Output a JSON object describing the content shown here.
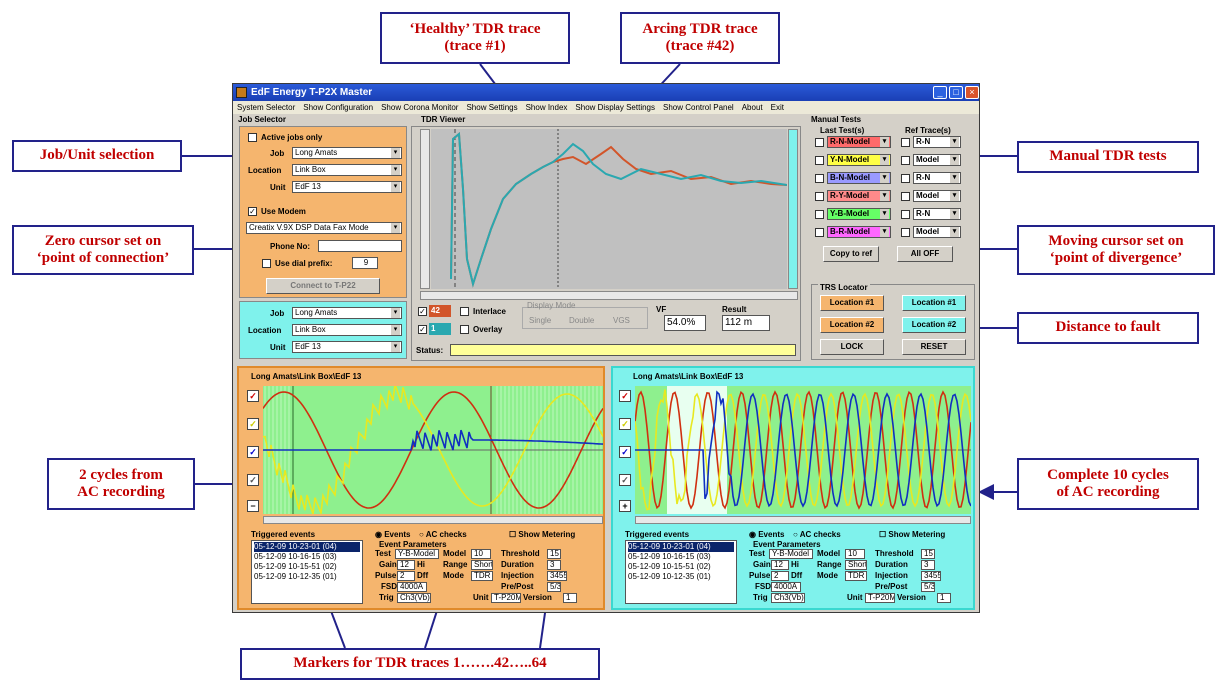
{
  "callouts": {
    "healthy": "‘Healthy’ TDR trace\n(trace #1)",
    "arcing": "Arcing TDR trace\n(trace #42)",
    "job_unit": "Job/Unit selection",
    "manual": "Manual TDR tests",
    "zero": "Zero cursor set on\n‘point of connection’",
    "moving": "Moving cursor set on\n‘point of divergence’",
    "distance": "Distance to fault",
    "two_cycles": "2 cycles from\nAC recording",
    "ten_cycles": "Complete 10 cycles\nof AC recording",
    "markers": "Markers for TDR traces 1…….42…..64"
  },
  "window": {
    "title": "EdF Energy T-P2X Master"
  },
  "menu": [
    "System Selector",
    "Show Configuration",
    "Show Corona Monitor",
    "Show Settings",
    "Show Index",
    "Show Display Settings",
    "Show Control Panel",
    "About",
    "Exit"
  ],
  "job_selector": {
    "title": "Job Selector",
    "active_only": "Active jobs only",
    "job_label": "Job",
    "job": "Long Amats",
    "location_label": "Location",
    "location": "Link Box",
    "unit_label": "Unit",
    "unit": "EdF 13",
    "use_modem": "Use Modem",
    "modem": "Creatix V.9X DSP Data Fax Mode",
    "phone_label": "Phone No:",
    "dial_prefix": "Use dial prefix:",
    "prefix": "9",
    "connect": "Connect to T-P22"
  },
  "job_selector2": {
    "job_label": "Job",
    "job": "Long Amats",
    "location_label": "Location",
    "location": "Link Box",
    "unit_label": "Unit",
    "unit": "EdF 13"
  },
  "tdr": {
    "title": "TDR Viewer",
    "trace_a": "42",
    "trace_b": "1",
    "interlace": "Interlace",
    "overlay": "Overlay",
    "display_mode": "Display Mode",
    "modes": [
      "Single",
      "Double",
      "VGS"
    ],
    "vf_label": "VF",
    "vf": "54.0%",
    "result_label": "Result",
    "result": "112 m",
    "status_label": "Status:"
  },
  "manual_tests": {
    "title": "Manual Tests",
    "last": "Last Test(s)",
    "ref": "Ref Trace(s)",
    "tests": [
      {
        "label": "R-N-Model",
        "color": "#ff6a6a"
      },
      {
        "label": "Y-N-Model",
        "color": "#ffff44"
      },
      {
        "label": "B-N-Model",
        "color": "#9a9aff"
      },
      {
        "label": "R-Y-Model",
        "color": "#ff8a8a"
      },
      {
        "label": "Y-B-Model",
        "color": "#66ff66"
      },
      {
        "label": "B-R-Model",
        "color": "#ff66ff"
      }
    ],
    "refs": [
      "R-N",
      "Model",
      "R-N",
      "Model",
      "R-N",
      "Model"
    ],
    "copy": "Copy to ref",
    "all_off": "All OFF"
  },
  "trs": {
    "title": "TRS Locator",
    "loc1": "Location #1",
    "loc2": "Location #2",
    "lock": "LOCK",
    "reset": "RESET"
  },
  "panel_left": {
    "path": "Long Amats\\Link Box\\EdF 13",
    "triggered": "Triggered events",
    "events": [
      "05-12-09 10-23-01 (04)",
      "05-12-09 10-16-15 (03)",
      "05-12-09 10-15-51 (02)",
      "05-12-09 10-12-35 (01)"
    ],
    "ev": "Events",
    "ac": "AC checks",
    "metering": "Show Metering",
    "params": "Event Parameters"
  },
  "panel_right": {
    "path": "Long Amats\\Link Box\\EdF 13",
    "triggered": "Triggered events",
    "events": [
      "05-12-09 10-23-01 (04)",
      "05-12-09 10-16-15 (03)",
      "05-12-09 10-15-51 (02)",
      "05-12-09 10-12-35 (01)"
    ],
    "ev": "Events",
    "ac": "AC checks",
    "metering": "Show Metering",
    "params": "Event Parameters"
  },
  "params": {
    "test": "Test",
    "test_v": "Y-B-Model",
    "model": "Model",
    "model_v": "10",
    "threshold": "Threshold",
    "threshold_v": "15",
    "gain": "Gain",
    "gain_v": "12",
    "hi": "Hi",
    "range": "Range",
    "range_v": "Short",
    "duration": "Duration",
    "duration_v": "3",
    "pulse": "Pulse",
    "pulse_v": "2",
    "diff": "Dff",
    "mode": "Mode",
    "mode_v": "TDR",
    "injection": "Injection",
    "injection_v": "3455",
    "fsd": "FSD",
    "fsd_v": "4000A",
    "prepost": "Pre/Post",
    "prepost_v": "5/3",
    "trig": "Trig",
    "trig_v": "Ch3(Vb)",
    "unit": "Unit",
    "unit_v": "T-P20M",
    "version": "Version",
    "version_v": "1"
  }
}
